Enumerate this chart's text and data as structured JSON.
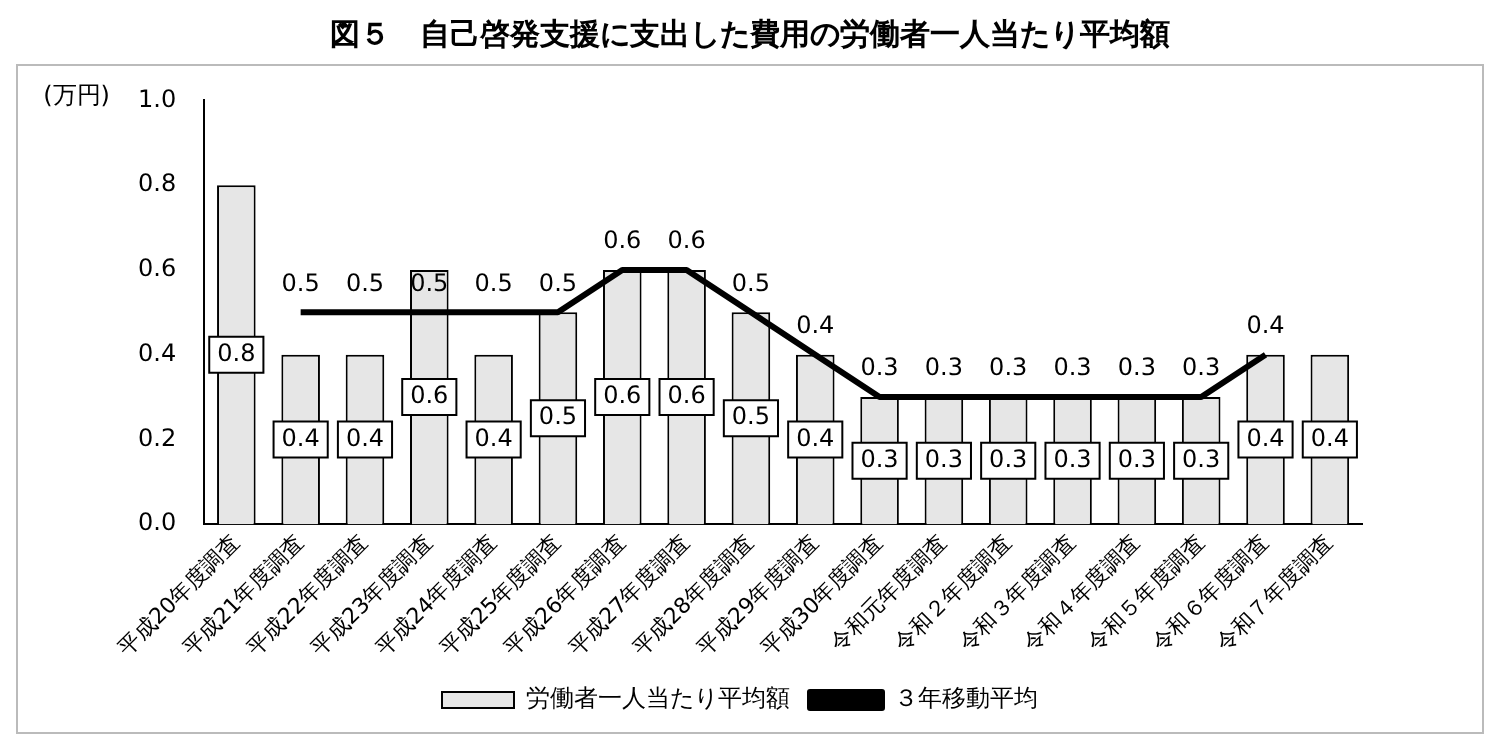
{
  "chart_data": {
    "type": "bar",
    "title": "図５　自己啓発支援に支出した費用の労働者一人当たり平均額",
    "ylabel": "(万円)",
    "categories": [
      "平成20年度調査",
      "平成21年度調査",
      "平成22年度調査",
      "平成23年度調査",
      "平成24年度調査",
      "平成25年度調査",
      "平成26年度調査",
      "平成27年度調査",
      "平成28年度調査",
      "平成29年度調査",
      "平成30年度調査",
      "令和元年度調査",
      "令和２年度調査",
      "令和３年度調査",
      "令和４年度調査",
      "令和５年度調査",
      "令和６年度調査",
      "令和７年度調査"
    ],
    "series": [
      {
        "name": "労働者一人当たり平均額",
        "color": "#e6e6e6",
        "values": [
          0.8,
          0.4,
          0.4,
          0.6,
          0.4,
          0.5,
          0.6,
          0.6,
          0.5,
          0.4,
          0.3,
          0.3,
          0.3,
          0.3,
          0.3,
          0.3,
          0.4,
          0.4
        ]
      },
      {
        "name": "３年移動平均",
        "type": "line",
        "color": "#000000",
        "values": [
          null,
          0.5,
          0.5,
          0.5,
          0.5,
          0.5,
          0.6,
          0.6,
          0.5,
          0.4,
          0.3,
          0.3,
          0.3,
          0.3,
          0.3,
          0.3,
          0.4,
          null
        ]
      }
    ],
    "ylim": [
      0,
      1
    ],
    "yticks": [
      {
        "value": 0,
        "label": "0.0"
      },
      0.2,
      0.4,
      0.6,
      0.8,
      {
        "value": 1,
        "label": "1.0"
      }
    ],
    "grid": false,
    "legend": "bottom",
    "marker": "none",
    "data_labels": true
  }
}
